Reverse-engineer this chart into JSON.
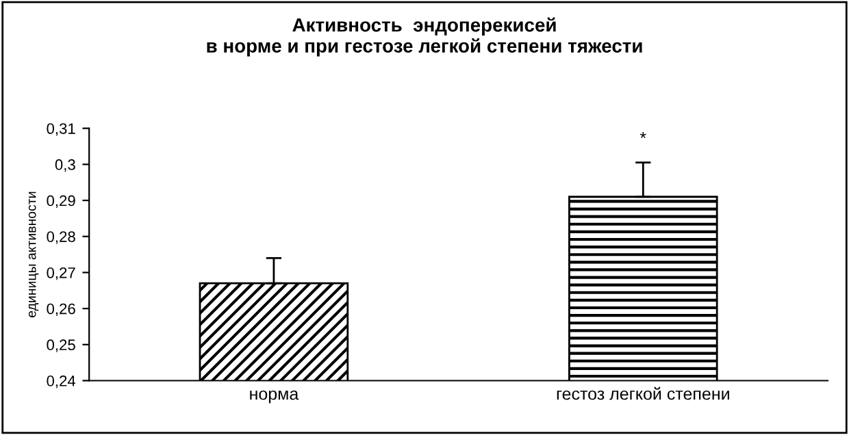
{
  "chart_data": {
    "type": "bar",
    "title": "Активность  эндоперекисей\nв норме и при гестозе легкой степени тяжести",
    "ylabel": "единицы активности",
    "categories": [
      "норма",
      "гестоз легкой степени"
    ],
    "values": [
      0.267,
      0.291
    ],
    "errors": [
      [
        0.267,
        0.274
      ],
      [
        0.291,
        0.3005
      ]
    ],
    "colors": [
      "#000000",
      "#000000"
    ],
    "ylim": [
      0.24,
      0.31
    ],
    "yticks": [
      {
        "value": 0.24,
        "label": "0,24"
      },
      {
        "value": 0.25,
        "label": "0,25"
      },
      {
        "value": 0.26,
        "label": "0,26"
      },
      {
        "value": 0.27,
        "label": "0,27"
      },
      {
        "value": 0.28,
        "label": "0,28"
      },
      {
        "value": 0.29,
        "label": "0,29"
      },
      {
        "value": 0.3,
        "label": "0,3"
      },
      {
        "value": 0.31,
        "label": "0,31"
      }
    ],
    "annotations": [
      "*"
    ],
    "grid": false,
    "legend": false
  }
}
